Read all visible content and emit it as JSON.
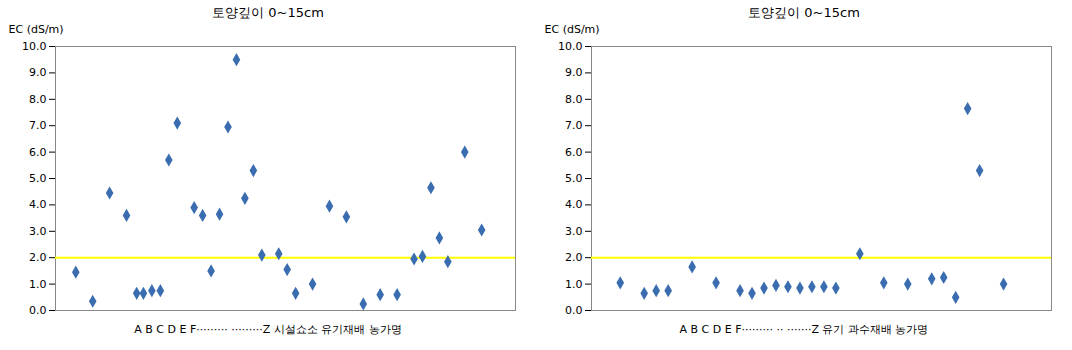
{
  "chart_data": [
    {
      "type": "scatter",
      "title": "토양깊이  0~15cm",
      "xlabel": "A  B  C  D  E  F·········  ·········Z  시설쇼소 유기재배 농가명",
      "ylabel": "EC (dS/m)",
      "x": [
        1,
        2,
        3,
        4,
        4.6,
        5,
        5.5,
        6,
        6.5,
        7,
        8,
        8.5,
        9,
        9.5,
        10,
        10.5,
        11,
        11.5,
        12,
        13,
        13.5,
        14,
        15,
        16,
        17,
        18,
        19,
        20,
        21,
        21.5,
        22,
        22.5,
        23,
        24,
        25
      ],
      "values": [
        1.45,
        0.35,
        4.45,
        3.6,
        0.65,
        0.65,
        0.75,
        0.75,
        5.7,
        7.1,
        3.9,
        3.6,
        1.5,
        3.65,
        6.95,
        9.5,
        4.25,
        5.3,
        2.1,
        2.15,
        1.55,
        0.65,
        1.0,
        3.95,
        3.55,
        0.25,
        0.6,
        0.6,
        1.95,
        2.05,
        4.65,
        2.75,
        1.85,
        6.0,
        3.05
      ],
      "color": "#3A6DB0",
      "marker": "diamond",
      "reference_line": {
        "value": 2.0,
        "color": "#FFFF00"
      },
      "xlim": [
        -0.2,
        27.0
      ],
      "ylim": [
        0.0,
        10.0
      ],
      "yticks": [
        {
          "value": 0,
          "label": "0.0"
        },
        {
          "value": 1,
          "label": "1.0"
        },
        {
          "value": 2,
          "label": "2.0"
        },
        {
          "value": 3,
          "label": "3.0"
        },
        {
          "value": 4,
          "label": "4.0"
        },
        {
          "value": 5,
          "label": "5.0"
        },
        {
          "value": 6,
          "label": "6.0"
        },
        {
          "value": 7,
          "label": "7.0"
        },
        {
          "value": 8,
          "label": "8.0"
        },
        {
          "value": 9,
          "label": "9.0"
        },
        {
          "value": 10,
          "label": "10.0"
        }
      ],
      "tick_labels": "y",
      "grid": false
    },
    {
      "type": "scatter",
      "title": "토양깊이  0~15cm",
      "xlabel": "A  B  C  D  E  F·········  ·· ·······Z 유기 과수재배 농가명",
      "ylabel": "EC (dS/m)",
      "x": [
        1,
        2,
        2.5,
        3,
        4,
        5,
        6,
        6.5,
        7,
        7.5,
        8,
        8.5,
        9,
        9.5,
        10,
        11,
        12,
        13,
        14,
        14.5,
        15,
        15.5,
        16,
        17
      ],
      "values": [
        1.05,
        0.65,
        0.75,
        0.75,
        1.65,
        1.05,
        0.75,
        0.65,
        0.85,
        0.95,
        0.9,
        0.85,
        0.9,
        0.9,
        0.85,
        2.15,
        1.05,
        1.0,
        1.2,
        1.25,
        0.5,
        7.65,
        5.3,
        1.0
      ],
      "color": "#3A6DB0",
      "marker": "diamond",
      "reference_line": {
        "value": 2.0,
        "color": "#FFFF00"
      },
      "xlim": [
        -0.2,
        19.0
      ],
      "ylim": [
        0.0,
        10.0
      ],
      "yticks": [
        {
          "value": 0,
          "label": "0.0"
        },
        {
          "value": 1,
          "label": "1.0"
        },
        {
          "value": 2,
          "label": "2.0"
        },
        {
          "value": 3,
          "label": "3.0"
        },
        {
          "value": 4,
          "label": "4.0"
        },
        {
          "value": 5,
          "label": "5.0"
        },
        {
          "value": 6,
          "label": "6.0"
        },
        {
          "value": 7,
          "label": "7.0"
        },
        {
          "value": 8,
          "label": "8.0"
        },
        {
          "value": 9,
          "label": "9.0"
        },
        {
          "value": 10,
          "label": "10.0"
        }
      ],
      "tick_labels": "y",
      "grid": false
    }
  ]
}
